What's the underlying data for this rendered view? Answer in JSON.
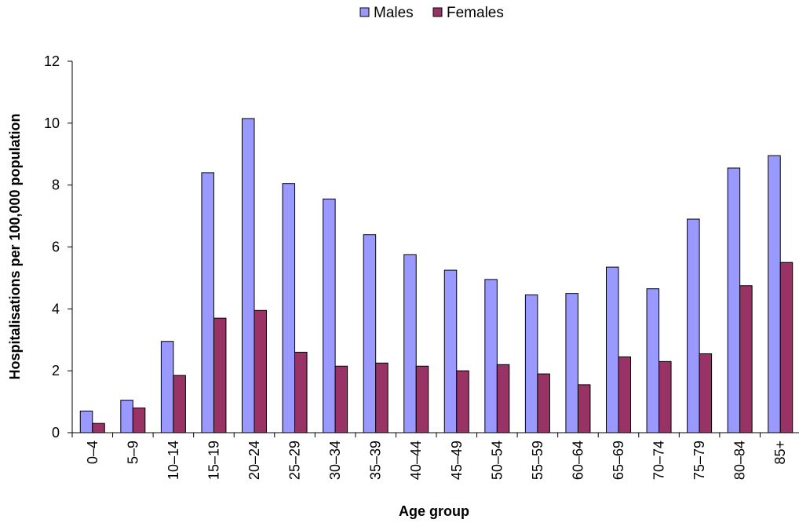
{
  "chart_data": {
    "type": "bar",
    "categories": [
      "0–4",
      "5–9",
      "10–14",
      "15–19",
      "20–24",
      "25–29",
      "30–34",
      "35–39",
      "40–44",
      "45–49",
      "50–54",
      "55–59",
      "60–64",
      "65–69",
      "70–74",
      "75–79",
      "80–84",
      "85+"
    ],
    "series": [
      {
        "name": "Males",
        "color": "#9999ff",
        "values": [
          0.7,
          1.05,
          2.95,
          8.4,
          10.15,
          8.05,
          7.55,
          6.4,
          5.75,
          5.25,
          4.95,
          4.45,
          4.5,
          5.35,
          4.65,
          6.9,
          8.55,
          8.95
        ]
      },
      {
        "name": "Females",
        "color": "#993366",
        "values": [
          0.3,
          0.8,
          1.85,
          3.7,
          3.95,
          2.6,
          2.15,
          2.25,
          2.15,
          2.0,
          2.2,
          1.9,
          1.55,
          2.45,
          2.3,
          2.55,
          4.75,
          5.5
        ]
      }
    ],
    "title": "",
    "xlabel": "Age group",
    "ylabel": "Hospitalisations per 100,000 population",
    "ylim": [
      0,
      12
    ],
    "yticks": [
      0,
      2,
      4,
      6,
      8,
      10,
      12
    ],
    "grid": false,
    "legend": "top-center"
  }
}
